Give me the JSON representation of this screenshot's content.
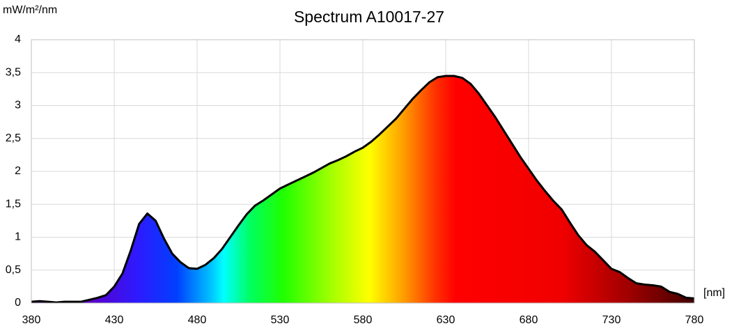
{
  "chart_data": {
    "type": "area",
    "title": "Spectrum A10017-27",
    "y_label": "mW/m²/nm",
    "x_label": "[nm]",
    "x": [
      380,
      385,
      390,
      395,
      400,
      405,
      410,
      415,
      420,
      425,
      430,
      435,
      440,
      445,
      450,
      455,
      460,
      465,
      470,
      475,
      480,
      485,
      490,
      495,
      500,
      505,
      510,
      515,
      520,
      525,
      530,
      535,
      540,
      545,
      550,
      555,
      560,
      565,
      570,
      575,
      580,
      585,
      590,
      595,
      600,
      605,
      610,
      615,
      620,
      625,
      630,
      635,
      640,
      645,
      650,
      655,
      660,
      665,
      670,
      675,
      680,
      685,
      690,
      695,
      700,
      705,
      710,
      715,
      720,
      725,
      730,
      735,
      740,
      745,
      750,
      755,
      760,
      765,
      770,
      775,
      780
    ],
    "series": [
      {
        "name": "Spectrum",
        "color": "#000000",
        "values": [
          0.02,
          0.03,
          0.02,
          0.01,
          0.02,
          0.02,
          0.02,
          0.05,
          0.08,
          0.12,
          0.25,
          0.45,
          0.8,
          1.2,
          1.36,
          1.25,
          0.98,
          0.75,
          0.62,
          0.53,
          0.52,
          0.58,
          0.68,
          0.82,
          1.0,
          1.18,
          1.35,
          1.48,
          1.56,
          1.65,
          1.74,
          1.8,
          1.86,
          1.92,
          1.98,
          2.05,
          2.12,
          2.17,
          2.23,
          2.3,
          2.36,
          2.45,
          2.56,
          2.68,
          2.8,
          2.95,
          3.1,
          3.23,
          3.35,
          3.43,
          3.45,
          3.45,
          3.42,
          3.33,
          3.18,
          3.0,
          2.82,
          2.62,
          2.42,
          2.22,
          2.04,
          1.86,
          1.7,
          1.55,
          1.42,
          1.22,
          1.03,
          0.88,
          0.78,
          0.65,
          0.52,
          0.47,
          0.38,
          0.3,
          0.28,
          0.27,
          0.25,
          0.17,
          0.14,
          0.08,
          0.07
        ]
      }
    ],
    "xlim": [
      380,
      780
    ],
    "xticks": [
      380,
      430,
      480,
      530,
      580,
      630,
      680,
      730,
      780
    ],
    "ylim": [
      0,
      4
    ],
    "yticks": [
      0,
      {
        "value": 0.5,
        "label": "0,5"
      },
      1,
      {
        "value": 1.5,
        "label": "1,5"
      },
      2,
      {
        "value": 2.5,
        "label": "2,5"
      },
      3,
      {
        "value": 3.5,
        "label": "3,5"
      },
      4
    ],
    "grid": true
  }
}
